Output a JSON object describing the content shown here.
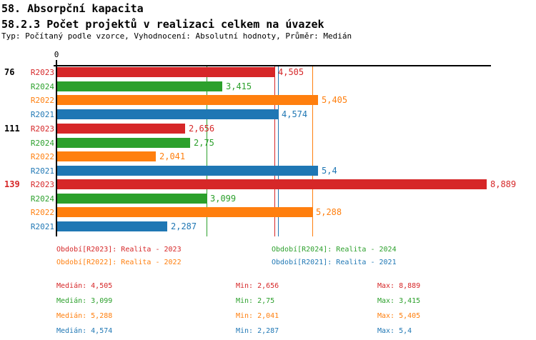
{
  "header": {
    "title": "58. Absorpční kapacita",
    "subtitle": "58.2.3 Počet projektů v realizaci celkem na úvazek",
    "meta": "Typ: Počítaný podle vzorce, Vyhodnocení: Absolutní hodnoty, Průměr: Medián"
  },
  "chart_data": {
    "type": "bar",
    "orientation": "horizontal",
    "title": "58.2.3 Počet projektů v realizaci celkem na úvazek",
    "x_axis": {
      "zero_label": "0",
      "min": 0,
      "max": 9,
      "gridlines": false
    },
    "value_format": "decimal comma (Czech)",
    "series": [
      {
        "key": "R2023",
        "name": "Realita - 2023",
        "color": "#d62728",
        "median": 4.505,
        "min": 2.656,
        "max": 8.889
      },
      {
        "key": "R2024",
        "name": "Realita - 2024",
        "color": "#2ca02c",
        "median": 3.099,
        "min": 2.75,
        "max": 3.415
      },
      {
        "key": "R2022",
        "name": "Realita - 2022",
        "color": "#ff7f0e",
        "median": 5.288,
        "min": 2.041,
        "max": 5.405
      },
      {
        "key": "R2021",
        "name": "Realita - 2021",
        "color": "#1f77b4",
        "median": 4.574,
        "min": 2.287,
        "max": 5.4
      }
    ],
    "median_lines": [
      {
        "series": "R2023",
        "value": 4.505,
        "color": "#d62728"
      },
      {
        "series": "R2024",
        "value": 3.099,
        "color": "#2ca02c"
      },
      {
        "series": "R2022",
        "value": 5.288,
        "color": "#ff7f0e"
      },
      {
        "series": "R2021",
        "value": 4.574,
        "color": "#1f77b4"
      }
    ],
    "groups": [
      {
        "label": "76",
        "label_color": "#000000",
        "bars": [
          {
            "series": "R2023",
            "value": 4.505,
            "label": "4,505"
          },
          {
            "series": "R2024",
            "value": 3.415,
            "label": "3,415"
          },
          {
            "series": "R2022",
            "value": 5.405,
            "label": "5,405"
          },
          {
            "series": "R2021",
            "value": 4.574,
            "label": "4,574"
          }
        ]
      },
      {
        "label": "111",
        "label_color": "#000000",
        "bars": [
          {
            "series": "R2023",
            "value": 2.656,
            "label": "2,656"
          },
          {
            "series": "R2024",
            "value": 2.75,
            "label": "2,75"
          },
          {
            "series": "R2022",
            "value": 2.041,
            "label": "2,041"
          },
          {
            "series": "R2021",
            "value": 5.4,
            "label": "5,4"
          }
        ]
      },
      {
        "label": "139",
        "label_color": "#d62728",
        "bars": [
          {
            "series": "R2023",
            "value": 8.889,
            "label": "8,889"
          },
          {
            "series": "R2024",
            "value": 3.099,
            "label": "3,099"
          },
          {
            "series": "R2022",
            "value": 5.288,
            "label": "5,288"
          },
          {
            "series": "R2021",
            "value": 2.287,
            "label": "2,287"
          }
        ]
      }
    ],
    "row_labels": [
      "R2023",
      "R2024",
      "R2022",
      "R2021"
    ],
    "legend_position": "below"
  },
  "legend": {
    "items": [
      {
        "series": "R2023",
        "text": "Období[R2023]: Realita - 2023",
        "color": "#d62728"
      },
      {
        "series": "R2024",
        "text": "Období[R2024]: Realita - 2024",
        "color": "#2ca02c"
      },
      {
        "series": "R2022",
        "text": "Období[R2022]: Realita - 2022",
        "color": "#ff7f0e"
      },
      {
        "series": "R2021",
        "text": "Období[R2021]: Realita - 2021",
        "color": "#1f77b4"
      }
    ]
  },
  "stats": {
    "labels": {
      "median": "Medián:",
      "min": "Min:",
      "max": "Max:"
    },
    "rows": [
      {
        "series": "R2023",
        "color": "#d62728",
        "median": "4,505",
        "min": "2,656",
        "max": "8,889"
      },
      {
        "series": "R2024",
        "color": "#2ca02c",
        "median": "3,099",
        "min": "2,75",
        "max": "3,415"
      },
      {
        "series": "R2022",
        "color": "#ff7f0e",
        "median": "5,288",
        "min": "2,041",
        "max": "5,405"
      },
      {
        "series": "R2021",
        "color": "#1f77b4",
        "median": "4,574",
        "min": "2,287",
        "max": "5,4"
      }
    ]
  }
}
